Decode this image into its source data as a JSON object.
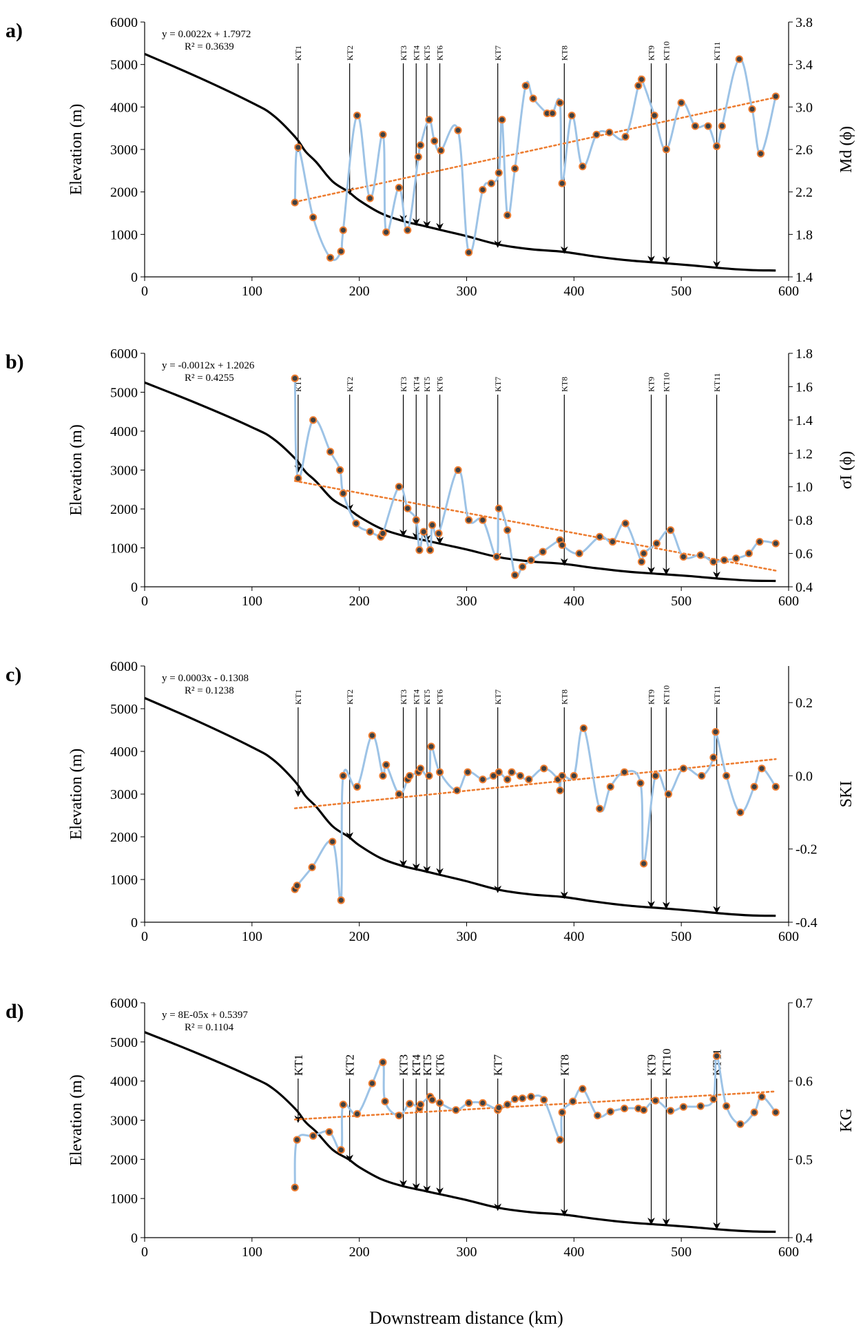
{
  "xaxis": {
    "label": "Downstream distance (km)",
    "ticks": [
      "0",
      "100",
      "200",
      "300",
      "400",
      "500",
      "600"
    ],
    "range": [
      0,
      600
    ]
  },
  "colors": {
    "elevation": "#000000",
    "series": "#9dc3e6",
    "marker_fill": "#404040",
    "marker_edge": "#ed7d31",
    "trend": "#ed7d31"
  },
  "elevation_profile": {
    "x": [
      0,
      50,
      100,
      120,
      140,
      150,
      160,
      175,
      190,
      200,
      220,
      240,
      260,
      280,
      300,
      330,
      360,
      390,
      420,
      450,
      480,
      510,
      540,
      565,
      588
    ],
    "y": [
      5250,
      4700,
      4100,
      3800,
      3300,
      2950,
      2700,
      2250,
      2000,
      1800,
      1500,
      1320,
      1200,
      1080,
      960,
      760,
      650,
      590,
      480,
      390,
      330,
      270,
      200,
      160,
      150
    ]
  },
  "stations": [
    {
      "name": "KT1",
      "x": 143,
      "y": 2950
    },
    {
      "name": "KT2",
      "x": 191,
      "y": 1950
    },
    {
      "name": "KT3",
      "x": 241,
      "y": 1300
    },
    {
      "name": "KT4",
      "x": 253,
      "y": 1220
    },
    {
      "name": "KT5",
      "x": 263,
      "y": 1160
    },
    {
      "name": "KT6",
      "x": 275,
      "y": 1110
    },
    {
      "name": "KT7",
      "x": 329,
      "y": 700
    },
    {
      "name": "KT8",
      "x": 391,
      "y": 560
    },
    {
      "name": "KT9",
      "x": 472,
      "y": 340
    },
    {
      "name": "KT10",
      "x": 486,
      "y": 320
    },
    {
      "name": "KT11",
      "x": 533,
      "y": 220
    }
  ],
  "chart_data": [
    {
      "panel": "a)",
      "type": "line",
      "ylabel_left": "Elevation (m)",
      "ylabel_right": "Md (ϕ)",
      "yleft_ticks": [
        "0",
        "1000",
        "2000",
        "3000",
        "4000",
        "5000",
        "6000"
      ],
      "yleft_range": [
        0,
        6000
      ],
      "yright_ticks": [
        "1.4",
        "1.8",
        "2.2",
        "2.6",
        "3.0",
        "3.4",
        "3.8"
      ],
      "yright_range": [
        1.4,
        3.8
      ],
      "equation": "y = 0.0022x + 1.7972",
      "r2": "R² = 0.3639",
      "trend": {
        "slope": 0.0022,
        "intercept": 1.7972,
        "x_range": [
          140,
          588
        ]
      },
      "series_x": [
        140,
        143,
        157,
        173,
        183,
        185,
        198,
        210,
        222,
        225,
        237,
        245,
        255,
        257,
        265,
        270,
        276,
        292,
        302,
        315,
        323,
        330,
        333,
        338,
        345,
        355,
        362,
        375,
        380,
        387,
        389,
        398,
        408,
        421,
        433,
        448,
        460,
        463,
        475,
        486,
        500,
        513,
        525,
        533,
        538,
        554,
        566,
        574,
        588
      ],
      "series_y": [
        2.1,
        2.62,
        1.96,
        1.58,
        1.64,
        1.84,
        2.92,
        2.14,
        2.74,
        1.82,
        2.24,
        1.84,
        2.53,
        2.64,
        2.88,
        2.68,
        2.59,
        2.78,
        1.63,
        2.22,
        2.28,
        2.38,
        2.88,
        1.98,
        2.42,
        3.2,
        3.08,
        2.94,
        2.94,
        3.04,
        2.28,
        2.92,
        2.44,
        2.74,
        2.76,
        2.72,
        3.2,
        3.26,
        2.92,
        2.6,
        3.04,
        2.82,
        2.82,
        2.63,
        2.82,
        3.45,
        2.98,
        2.56,
        3.1
      ],
      "ylim": [
        1.4,
        3.8
      ]
    },
    {
      "panel": "b)",
      "type": "line",
      "ylabel_left": "Elevation (m)",
      "ylabel_right": "σI (ϕ)",
      "yleft_ticks": [
        "0",
        "1000",
        "2000",
        "3000",
        "4000",
        "5000",
        "6000"
      ],
      "yleft_range": [
        0,
        6000
      ],
      "yright_ticks": [
        "0.4",
        "0.6",
        "0.8",
        "1.0",
        "1.2",
        "1.4",
        "1.6",
        "1.8"
      ],
      "yright_range": [
        0.4,
        1.8
      ],
      "equation": "y = -0.0012x + 1.2026",
      "r2": "R² = 0.4255",
      "trend": {
        "slope": -0.0012,
        "intercept": 1.2026,
        "x_range": [
          140,
          588
        ]
      },
      "series_x": [
        140,
        143,
        157,
        173,
        182,
        185,
        197,
        210,
        220,
        222,
        237,
        245,
        253,
        256,
        260,
        266,
        268,
        274,
        292,
        302,
        315,
        328,
        330,
        338,
        345,
        352,
        360,
        371,
        387,
        389,
        405,
        424,
        436,
        448,
        463,
        465,
        477,
        490,
        502,
        518,
        530,
        540,
        551,
        563,
        573,
        588
      ],
      "series_y": [
        1.65,
        1.05,
        1.4,
        1.21,
        1.1,
        0.96,
        0.78,
        0.73,
        0.7,
        0.72,
        1.0,
        0.87,
        0.8,
        0.62,
        0.73,
        0.62,
        0.77,
        0.72,
        1.1,
        0.8,
        0.8,
        0.58,
        0.87,
        0.74,
        0.47,
        0.52,
        0.56,
        0.61,
        0.68,
        0.65,
        0.6,
        0.7,
        0.67,
        0.78,
        0.55,
        0.6,
        0.66,
        0.74,
        0.58,
        0.59,
        0.55,
        0.56,
        0.57,
        0.6,
        0.67,
        0.66
      ],
      "ylim": [
        0.4,
        1.8
      ]
    },
    {
      "panel": "c)",
      "type": "line",
      "ylabel_left": "Elevation (m)",
      "ylabel_right": "SKI",
      "yleft_ticks": [
        "0",
        "1000",
        "2000",
        "3000",
        "4000",
        "5000",
        "6000"
      ],
      "yleft_range": [
        0,
        6000
      ],
      "yright_ticks": [
        "-0.4",
        "-0.2",
        "0.0",
        "0.2"
      ],
      "yright_range": [
        -0.4,
        0.3
      ],
      "equation": "y = 0.0003x - 0.1308",
      "r2": "R² = 0.1238",
      "trend": {
        "slope": 0.0003,
        "intercept": -0.1308,
        "x_range": [
          140,
          588
        ]
      },
      "series_x": [
        140,
        142,
        156,
        175,
        183,
        185,
        198,
        212,
        222,
        225,
        237,
        245,
        247,
        255,
        257,
        265,
        267,
        275,
        291,
        301,
        315,
        325,
        330,
        338,
        342,
        350,
        358,
        372,
        385,
        387,
        389,
        400,
        409,
        424,
        434,
        447,
        462,
        465,
        476,
        488,
        502,
        519,
        530,
        532,
        542,
        555,
        568,
        575,
        588
      ],
      "series_y": [
        -0.31,
        -0.3,
        -0.25,
        -0.18,
        -0.34,
        0.0,
        -0.03,
        0.11,
        0.0,
        0.03,
        -0.05,
        -0.01,
        0.0,
        0.01,
        0.02,
        0.0,
        0.08,
        0.01,
        -0.04,
        0.01,
        -0.01,
        0.0,
        0.01,
        -0.01,
        0.01,
        0.0,
        -0.01,
        0.02,
        -0.01,
        -0.04,
        0.0,
        0.0,
        0.13,
        -0.09,
        -0.03,
        0.01,
        -0.02,
        -0.24,
        0.0,
        -0.05,
        0.02,
        0.0,
        0.05,
        0.12,
        0.0,
        -0.1,
        -0.03,
        0.02,
        -0.03
      ],
      "ylim": [
        -0.4,
        0.3
      ]
    },
    {
      "panel": "d)",
      "type": "line",
      "ylabel_left": "Elevation (m)",
      "ylabel_right": "KG",
      "yleft_ticks": [
        "0",
        "1000",
        "2000",
        "3000",
        "4000",
        "5000",
        "6000"
      ],
      "yleft_range": [
        0,
        6000
      ],
      "yright_ticks": [
        "0.4",
        "0.5",
        "0.6",
        "0.7"
      ],
      "yright_range": [
        0.4,
        0.7
      ],
      "equation": "y = 8E-05x + 0.5397",
      "r2": "R² = 0.1104",
      "trend": {
        "slope": 8e-05,
        "intercept": 0.5397,
        "x_range": [
          140,
          588
        ]
      },
      "series_x": [
        140,
        142,
        157,
        172,
        183,
        185,
        198,
        212,
        222,
        224,
        237,
        247,
        256,
        257,
        266,
        268,
        275,
        290,
        302,
        315,
        329,
        330,
        338,
        345,
        352,
        360,
        372,
        387,
        389,
        399,
        408,
        422,
        434,
        447,
        460,
        465,
        476,
        490,
        502,
        518,
        530,
        533,
        542,
        555,
        568,
        575,
        588
      ],
      "series_y": [
        0.464,
        0.525,
        0.53,
        0.535,
        0.512,
        0.57,
        0.558,
        0.597,
        0.624,
        0.574,
        0.556,
        0.571,
        0.565,
        0.57,
        0.58,
        0.576,
        0.572,
        0.563,
        0.572,
        0.572,
        0.563,
        0.566,
        0.57,
        0.577,
        0.578,
        0.58,
        0.576,
        0.525,
        0.56,
        0.574,
        0.59,
        0.556,
        0.561,
        0.565,
        0.565,
        0.563,
        0.575,
        0.562,
        0.567,
        0.568,
        0.577,
        0.632,
        0.568,
        0.545,
        0.56,
        0.58,
        0.56
      ],
      "ylim": [
        0.4,
        0.7
      ]
    }
  ]
}
